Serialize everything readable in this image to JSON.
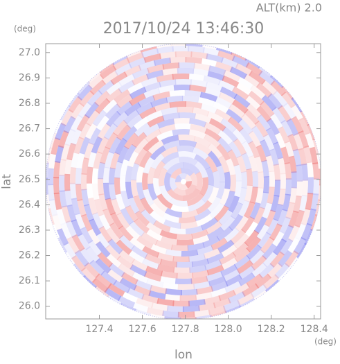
{
  "chart_data": {
    "type": "radar-ppi",
    "title": "2017/10/24 13:46:30",
    "subtitle": "ALT(km) 2.0",
    "x_label": "lon",
    "y_label": "lat",
    "x_unit": "(deg)",
    "y_unit": "(deg)",
    "xlim": [
      127.15,
      128.43
    ],
    "ylim": [
      25.95,
      27.035
    ],
    "xticks": [
      {
        "value": 127.4,
        "label": "127.4"
      },
      {
        "value": 127.6,
        "label": "127.6"
      },
      {
        "value": 127.8,
        "label": "127.8"
      },
      {
        "value": 128.0,
        "label": "128.0"
      },
      {
        "value": 128.2,
        "label": "128.2"
      },
      {
        "value": 128.4,
        "label": "128.4"
      }
    ],
    "yticks": [
      {
        "value": 26.0,
        "label": "26.0"
      },
      26.1,
      26.2,
      26.3,
      26.4,
      26.5,
      26.6,
      26.7,
      26.8,
      26.9,
      {
        "value": 27.0,
        "label": "27.0"
      }
    ]
  }
}
